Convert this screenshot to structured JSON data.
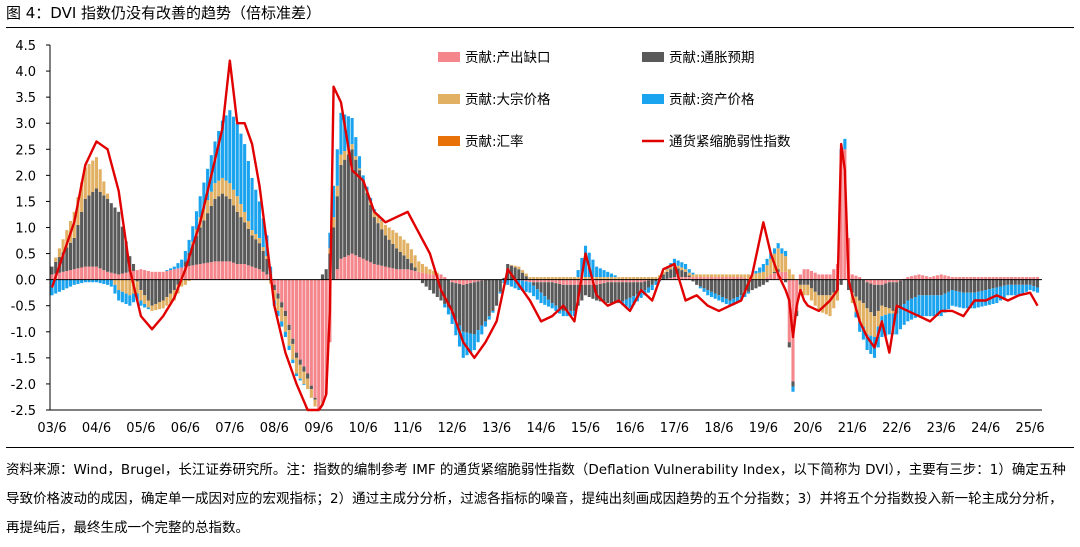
{
  "title": "图 4：DVI 指数仍没有改善的趋势（倍标准差）",
  "source_note": "资料来源：Wind，Brugel，长江证券研究所。注：指数的编制参考 IMF 的通货紧缩脆弱性指数（Deflation Vulnerability Index，以下简称为 DVI），主要有三步：1）确定五种导致价格波动的成因，确定单一成因对应的宏观指标；2）通过主成分分析，过滤各指标的噪音，提纯出刻画成因趋势的五个分指数；3）并将五个分指数投入新一轮主成分分析，再提纯后，最终生成一个完整的总指数。",
  "chart_data": {
    "type": "bar",
    "stacked": true,
    "overlay_line": "通货紧缩脆弱性指数",
    "ylim": [
      -2.5,
      4.5
    ],
    "yticks": [
      "4.5",
      "4.0",
      "3.5",
      "3.0",
      "2.5",
      "2.0",
      "1.5",
      "1.0",
      "0.5",
      "0.0",
      "-0.5",
      "-1.0",
      "-1.5",
      "-2.0",
      "-2.5"
    ],
    "ytick_values": [
      4.5,
      4.0,
      3.5,
      3.0,
      2.5,
      2.0,
      1.5,
      1.0,
      0.5,
      0.0,
      -0.5,
      -1.0,
      -1.5,
      -2.0,
      -2.5
    ],
    "xtick_labels": [
      "03/6",
      "04/6",
      "05/6",
      "06/6",
      "07/6",
      "08/6",
      "09/6",
      "10/6",
      "11/6",
      "12/6",
      "13/6",
      "14/6",
      "15/6",
      "16/6",
      "17/6",
      "18/6",
      "19/6",
      "20/6",
      "21/6",
      "22/6",
      "23/6",
      "24/6",
      "25/6"
    ],
    "xtick_months": [
      0,
      12,
      24,
      36,
      48,
      60,
      72,
      84,
      96,
      108,
      120,
      132,
      144,
      156,
      168,
      180,
      192,
      204,
      216,
      228,
      240,
      252,
      264
    ],
    "legend_position": "top-right",
    "series": [
      {
        "name": "贡献:产出缺口",
        "color": "#F4868C"
      },
      {
        "name": "贡献:通胀预期",
        "color": "#595959"
      },
      {
        "name": "贡献:大宗价格",
        "color": "#E2B063"
      },
      {
        "name": "贡献:资产价格",
        "color": "#1AA3EE"
      },
      {
        "name": "贡献:汇率",
        "color": "#E8710A"
      },
      {
        "name": "通货紧缩脆弱性指数",
        "color": "#E00000"
      }
    ],
    "anchors": {
      "months": [
        0,
        6,
        9,
        12,
        15,
        18,
        21,
        24,
        27,
        30,
        33,
        36,
        40,
        44,
        46,
        48,
        50,
        52,
        54,
        56,
        58,
        60,
        63,
        66,
        69,
        72,
        74,
        75,
        76,
        78,
        81,
        84,
        87,
        90,
        93,
        96,
        99,
        102,
        105,
        108,
        111,
        114,
        117,
        120,
        123,
        126,
        129,
        132,
        135,
        138,
        141,
        144,
        147,
        150,
        153,
        156,
        159,
        162,
        165,
        168,
        171,
        174,
        177,
        180,
        183,
        186,
        189,
        192,
        194,
        196,
        198,
        199,
        200,
        201,
        202,
        203,
        204,
        207,
        210,
        212,
        213,
        214,
        215,
        216,
        218,
        220,
        222,
        224,
        226,
        228,
        231,
        234,
        237,
        240,
        243,
        246,
        249,
        252,
        255,
        258,
        261,
        264,
        266
      ],
      "output_gap": [
        0.1,
        0.2,
        0.25,
        0.25,
        0.15,
        0.1,
        0.15,
        0.2,
        0.15,
        0.15,
        0.2,
        0.25,
        0.3,
        0.35,
        0.35,
        0.35,
        0.3,
        0.3,
        0.25,
        0.2,
        0.1,
        -0.1,
        -0.6,
        -1.4,
        -1.8,
        -2.5,
        -2.2,
        -1.2,
        0.0,
        0.4,
        0.5,
        0.4,
        0.3,
        0.25,
        0.2,
        0.2,
        0.15,
        0.1,
        0.1,
        -0.05,
        -0.1,
        -0.05,
        0.0,
        0.0,
        0.0,
        0.0,
        -0.05,
        -0.05,
        -0.05,
        -0.1,
        -0.1,
        -0.1,
        -0.1,
        -0.05,
        -0.05,
        -0.05,
        -0.05,
        0.0,
        0.0,
        0.05,
        0.05,
        0.05,
        0.05,
        0.05,
        0.05,
        0.05,
        0.0,
        0.0,
        0.1,
        0.15,
        0.15,
        -1.2,
        -1.95,
        -0.6,
        0.1,
        0.2,
        0.2,
        0.1,
        0.1,
        0.3,
        2.4,
        2.5,
        0.8,
        0.1,
        0.05,
        -0.05,
        -0.1,
        -0.1,
        -0.05,
        -0.05,
        0.05,
        0.1,
        0.05,
        0.1,
        0.05,
        0.05,
        0.05,
        0.05,
        0.05,
        0.05,
        0.05,
        0.05,
        0.05
      ],
      "inflation_exp": [
        0.15,
        0.6,
        1.3,
        1.5,
        1.4,
        1.2,
        0.3,
        -0.2,
        -0.5,
        -0.4,
        -0.2,
        0.1,
        0.7,
        1.2,
        1.3,
        1.2,
        1.0,
        0.8,
        0.6,
        0.5,
        0.3,
        -0.1,
        -0.1,
        -0.1,
        -0.1,
        0.0,
        0.2,
        0.5,
        1.0,
        1.8,
        2.0,
        1.5,
        0.9,
        0.6,
        0.4,
        0.2,
        0.0,
        -0.2,
        -0.4,
        -0.6,
        -0.9,
        -1.0,
        -0.8,
        -0.5,
        0.3,
        0.2,
        0.0,
        -0.2,
        -0.4,
        -0.5,
        -0.5,
        -0.2,
        -0.3,
        -0.4,
        -0.4,
        -0.3,
        -0.2,
        -0.1,
        0.1,
        0.2,
        0.1,
        -0.1,
        -0.2,
        -0.3,
        -0.4,
        -0.3,
        -0.2,
        -0.1,
        0.0,
        0.05,
        -0.05,
        -0.1,
        -0.1,
        -0.1,
        -0.1,
        -0.1,
        -0.1,
        -0.3,
        -0.3,
        -0.2,
        -0.1,
        0.0,
        -0.2,
        -0.25,
        -0.4,
        -0.5,
        -0.6,
        -0.4,
        -0.5,
        -0.6,
        -0.4,
        -0.3,
        -0.3,
        -0.3,
        -0.2,
        -0.25,
        -0.25,
        -0.2,
        -0.15,
        -0.1,
        -0.1,
        -0.1,
        -0.15
      ],
      "commodity": [
        0.0,
        0.5,
        0.6,
        0.6,
        0.1,
        -0.2,
        -0.3,
        -0.2,
        -0.1,
        -0.15,
        -0.2,
        -0.1,
        0.2,
        0.3,
        0.3,
        0.3,
        0.3,
        0.2,
        0.1,
        0.1,
        0.05,
        -0.2,
        -0.3,
        -0.3,
        -0.2,
        -0.1,
        0.0,
        0.1,
        0.2,
        0.2,
        0.1,
        0.0,
        0.1,
        0.2,
        0.3,
        0.3,
        0.2,
        0.1,
        0.0,
        0.0,
        0.0,
        0.0,
        0.0,
        0.0,
        0.0,
        0.05,
        0.05,
        0.05,
        0.05,
        0.05,
        0.05,
        0.05,
        0.05,
        0.05,
        0.05,
        0.05,
        0.05,
        0.05,
        0.05,
        0.05,
        0.05,
        0.05,
        0.05,
        0.05,
        0.05,
        0.05,
        0.1,
        0.15,
        0.3,
        0.4,
        0.3,
        0.2,
        0.1,
        0.0,
        -0.1,
        -0.2,
        -0.2,
        -0.3,
        -0.4,
        -0.2,
        0.0,
        0.0,
        0.0,
        -0.2,
        -0.4,
        -0.5,
        -0.4,
        -0.2,
        -0.1,
        0.0,
        0.0,
        0.0,
        0.0,
        0.0,
        0.0,
        0.0,
        0.0,
        0.0,
        0.0,
        0.0,
        0.0,
        0.0,
        0.0
      ],
      "asset": [
        -0.3,
        -0.1,
        -0.05,
        -0.05,
        -0.1,
        -0.2,
        -0.2,
        -0.1,
        0.0,
        0.0,
        0.05,
        0.2,
        0.4,
        0.8,
        1.1,
        1.4,
        1.4,
        1.3,
        1.0,
        0.7,
        0.4,
        -0.1,
        -0.1,
        -0.05,
        0.0,
        0.0,
        0.0,
        0.3,
        0.6,
        0.8,
        0.5,
        0.1,
        0.05,
        0.0,
        0.0,
        0.0,
        0.0,
        0.0,
        0.0,
        -0.2,
        -0.5,
        -0.3,
        -0.1,
        0.0,
        -0.1,
        -0.2,
        -0.2,
        -0.2,
        -0.1,
        -0.1,
        -0.1,
        0.6,
        0.2,
        0.1,
        0.0,
        -0.2,
        -0.1,
        -0.1,
        0.0,
        0.1,
        0.1,
        0.0,
        -0.1,
        -0.1,
        -0.1,
        -0.1,
        0.0,
        0.15,
        0.1,
        0.1,
        0.1,
        0.0,
        -0.1,
        0.0,
        0.0,
        0.0,
        0.0,
        0.0,
        0.0,
        0.0,
        0.1,
        0.2,
        0.0,
        0.0,
        -0.2,
        -0.3,
        -0.4,
        -0.4,
        -0.4,
        -0.4,
        -0.4,
        -0.4,
        -0.4,
        -0.4,
        -0.3,
        -0.3,
        -0.3,
        -0.3,
        -0.3,
        -0.2,
        -0.2,
        -0.1,
        -0.1
      ],
      "fx": [
        0.0,
        0.0,
        0.0,
        0.0,
        0.0,
        0.0,
        0.0,
        0.0,
        0.0,
        0.0,
        0.0,
        0.0,
        0.0,
        0.0,
        0.0,
        0.0,
        0.0,
        0.0,
        0.0,
        0.0,
        0.0,
        0.0,
        0.0,
        0.0,
        0.0,
        0.0,
        0.0,
        0.0,
        0.0,
        0.0,
        0.0,
        0.0,
        0.0,
        0.0,
        0.0,
        0.0,
        0.0,
        0.0,
        0.0,
        0.0,
        0.0,
        0.0,
        0.0,
        0.0,
        0.0,
        0.0,
        0.0,
        0.0,
        0.0,
        0.0,
        0.0,
        0.0,
        0.0,
        0.0,
        0.0,
        0.0,
        0.0,
        0.0,
        0.0,
        0.0,
        0.0,
        0.0,
        0.0,
        0.0,
        0.0,
        0.0,
        0.0,
        0.0,
        0.0,
        0.0,
        0.0,
        0.0,
        0.0,
        0.0,
        0.0,
        0.0,
        0.0,
        0.0,
        0.0,
        0.0,
        0.0,
        0.0,
        0.0,
        0.0,
        0.0,
        0.0,
        0.0,
        0.0,
        0.0,
        0.0,
        0.0,
        0.0,
        0.0,
        0.0,
        0.0,
        0.0,
        0.0,
        0.0,
        0.0,
        0.0,
        0.0,
        0.0,
        0.0
      ],
      "dvi": [
        -0.15,
        1.1,
        2.2,
        2.65,
        2.5,
        1.7,
        0.2,
        -0.7,
        -0.95,
        -0.7,
        -0.35,
        0.2,
        1.1,
        2.3,
        2.9,
        4.2,
        3.0,
        3.0,
        2.6,
        1.8,
        0.7,
        -0.5,
        -1.4,
        -2.0,
        -2.5,
        -2.6,
        -2.2,
        -0.6,
        3.7,
        3.4,
        2.1,
        1.9,
        1.3,
        1.1,
        1.2,
        1.3,
        0.9,
        0.5,
        -0.2,
        -0.6,
        -1.2,
        -1.5,
        -1.2,
        -0.8,
        0.2,
        -0.1,
        -0.4,
        -0.8,
        -0.7,
        -0.5,
        -0.8,
        0.5,
        -0.3,
        -0.5,
        -0.4,
        -0.6,
        -0.2,
        -0.4,
        0.2,
        0.3,
        -0.4,
        -0.3,
        -0.5,
        -0.6,
        -0.5,
        -0.4,
        0.1,
        1.1,
        0.5,
        0.1,
        -0.2,
        -0.4,
        -1.1,
        -0.5,
        -0.2,
        -0.4,
        -0.5,
        -0.6,
        -0.4,
        -0.2,
        2.6,
        2.1,
        0.0,
        -0.3,
        -0.8,
        -1.1,
        -1.3,
        -0.8,
        -1.4,
        -0.5,
        -0.6,
        -0.7,
        -0.8,
        -0.6,
        -0.6,
        -0.7,
        -0.4,
        -0.4,
        -0.3,
        -0.4,
        -0.3,
        -0.25,
        -0.5
      ]
    }
  }
}
